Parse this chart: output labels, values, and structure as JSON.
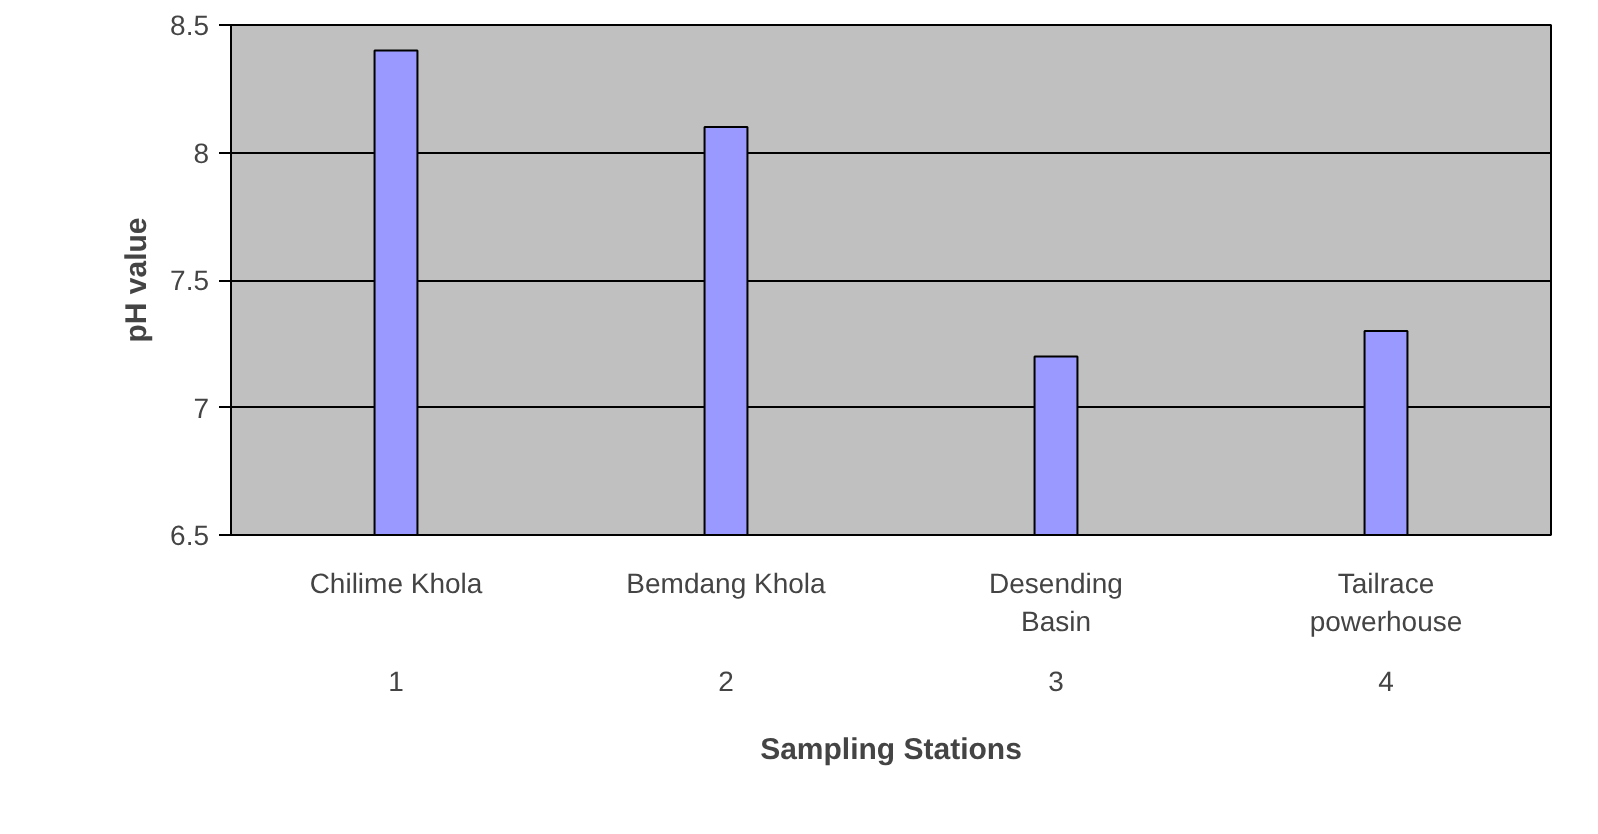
{
  "chart_data": {
    "type": "bar",
    "categories": [
      "Chilime Khola",
      "Bemdang Khola",
      "Desending Basin",
      "Tailrace powerhouse"
    ],
    "values": [
      8.4,
      8.1,
      7.2,
      7.3
    ],
    "color": "#9999ff",
    "xlabel": "Sampling Stations",
    "ylabel": "pH value",
    "ylim": [
      6.5,
      8.5
    ],
    "yticks": [
      6.5,
      7,
      7.5,
      8,
      8.5
    ],
    "grid": "y",
    "annotations": [
      "1",
      "2",
      "3",
      "4"
    ]
  }
}
